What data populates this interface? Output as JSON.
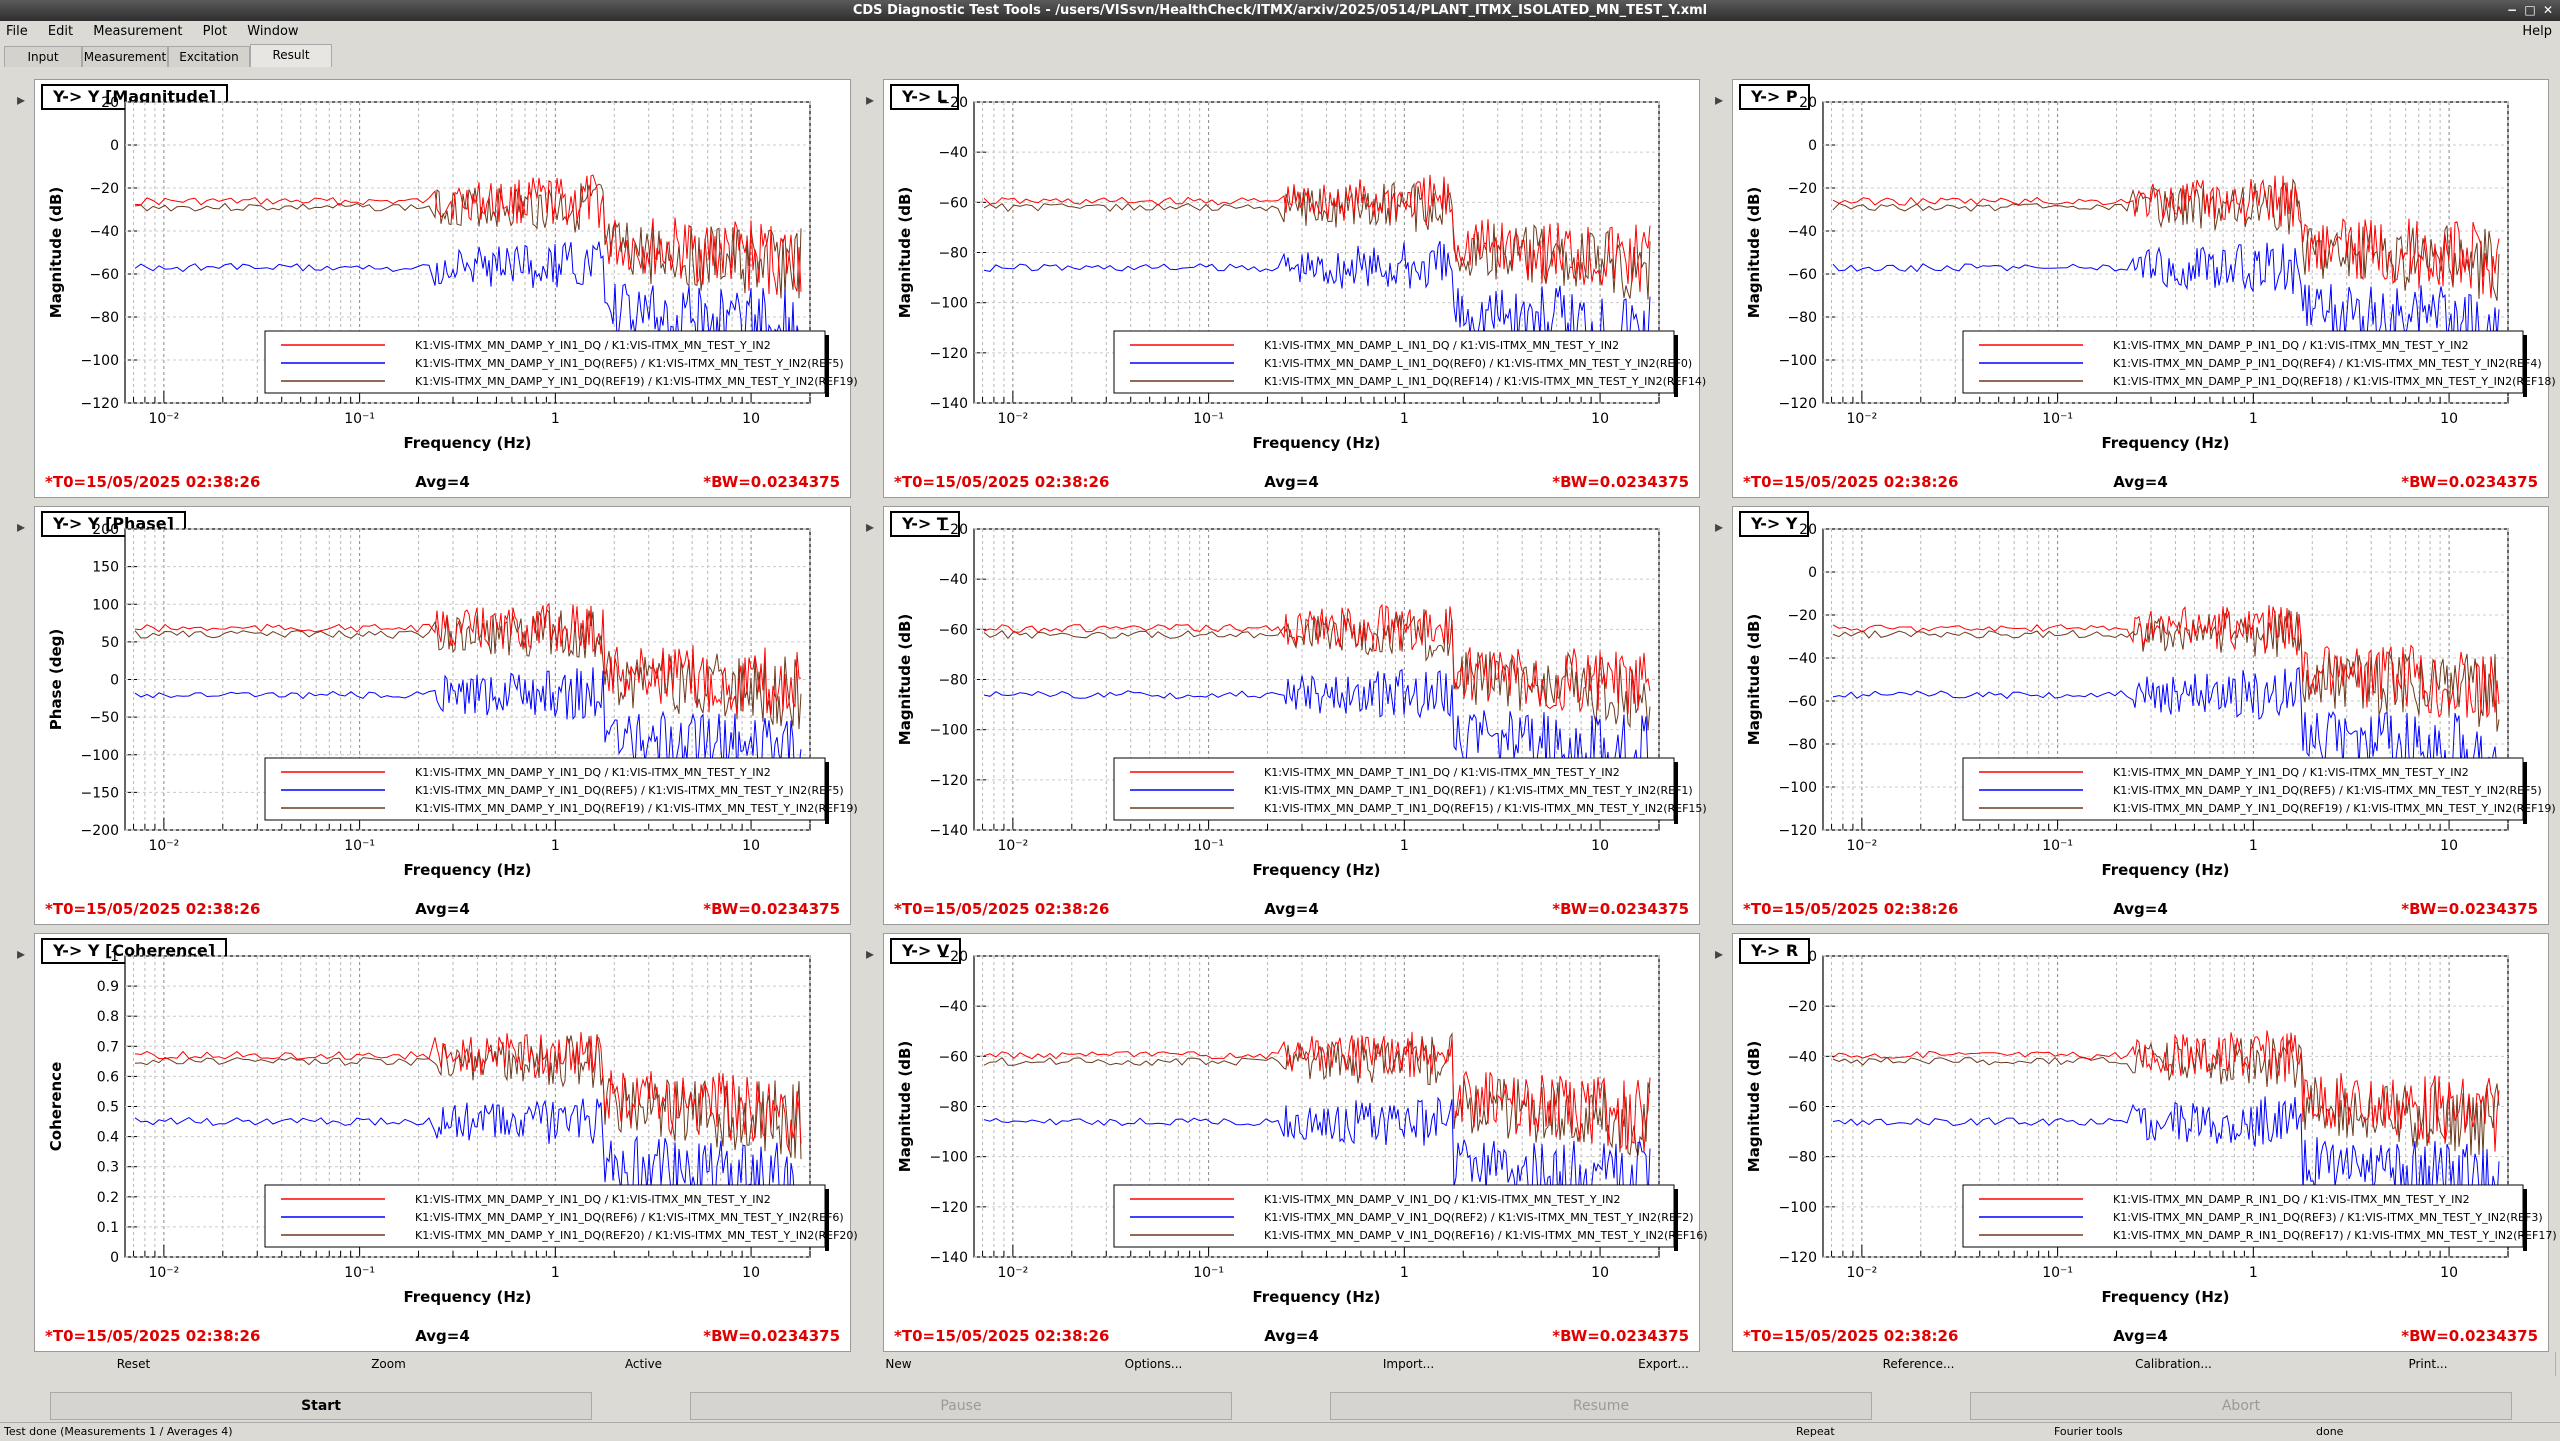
{
  "window": {
    "title": "CDS Diagnostic Test Tools - /users/VISsvn/HealthCheck/ITMX/arxiv/2025/0514/PLANT_ITMX_ISOLATED_MN_TEST_Y.xml"
  },
  "menu": {
    "items": [
      "File",
      "Edit",
      "Measurement",
      "Plot",
      "Window"
    ],
    "help": "Help"
  },
  "tabs": [
    "Input",
    "Measurement",
    "Excitation",
    "Result"
  ],
  "common": {
    "t0": "*T0=15/05/2025 02:38:26",
    "avg": "Avg=4",
    "bw": "*BW=0.0234375",
    "xlabel": "Frequency (Hz)",
    "xticks": [
      "10⁻²",
      "10⁻¹",
      "1",
      "10"
    ]
  },
  "panels": [
    {
      "title": "Y-> Y [Magnitude]",
      "ylabel": "Magnitude (dB)",
      "yticks": [
        "20",
        "0",
        "−20",
        "−40",
        "−60",
        "−80",
        "−100",
        "−120"
      ],
      "legend": [
        "K1:VIS-ITMX_MN_DAMP_Y_IN1_DQ / K1:VIS-ITMX_MN_TEST_Y_IN2",
        "K1:VIS-ITMX_MN_DAMP_Y_IN1_DQ(REF5) / K1:VIS-ITMX_MN_TEST_Y_IN2(REF5)",
        "K1:VIS-ITMX_MN_DAMP_Y_IN1_DQ(REF19) / K1:VIS-ITMX_MN_TEST_Y_IN2(REF19)"
      ]
    },
    {
      "title": "Y-> L",
      "ylabel": "Magnitude (dB)",
      "yticks": [
        "−20",
        "−40",
        "−60",
        "−80",
        "−100",
        "−120",
        "−140"
      ],
      "legend": [
        "K1:VIS-ITMX_MN_DAMP_L_IN1_DQ / K1:VIS-ITMX_MN_TEST_Y_IN2",
        "K1:VIS-ITMX_MN_DAMP_L_IN1_DQ(REF0) / K1:VIS-ITMX_MN_TEST_Y_IN2(REF0)",
        "K1:VIS-ITMX_MN_DAMP_L_IN1_DQ(REF14) / K1:VIS-ITMX_MN_TEST_Y_IN2(REF14)"
      ]
    },
    {
      "title": "Y-> P",
      "ylabel": "Magnitude (dB)",
      "yticks": [
        "20",
        "0",
        "−20",
        "−40",
        "−60",
        "−80",
        "−100",
        "−120"
      ],
      "legend": [
        "K1:VIS-ITMX_MN_DAMP_P_IN1_DQ / K1:VIS-ITMX_MN_TEST_Y_IN2",
        "K1:VIS-ITMX_MN_DAMP_P_IN1_DQ(REF4) / K1:VIS-ITMX_MN_TEST_Y_IN2(REF4)",
        "K1:VIS-ITMX_MN_DAMP_P_IN1_DQ(REF18) / K1:VIS-ITMX_MN_TEST_Y_IN2(REF18)"
      ]
    },
    {
      "title": "Y-> Y [Phase]",
      "ylabel": "Phase (deg)",
      "yticks": [
        "200",
        "150",
        "100",
        "50",
        "0",
        "−50",
        "−100",
        "−150",
        "−200"
      ],
      "legend": [
        "K1:VIS-ITMX_MN_DAMP_Y_IN1_DQ / K1:VIS-ITMX_MN_TEST_Y_IN2",
        "K1:VIS-ITMX_MN_DAMP_Y_IN1_DQ(REF5) / K1:VIS-ITMX_MN_TEST_Y_IN2(REF5)",
        "K1:VIS-ITMX_MN_DAMP_Y_IN1_DQ(REF19) / K1:VIS-ITMX_MN_TEST_Y_IN2(REF19)"
      ]
    },
    {
      "title": "Y-> T",
      "ylabel": "Magnitude (dB)",
      "yticks": [
        "−20",
        "−40",
        "−60",
        "−80",
        "−100",
        "−120",
        "−140"
      ],
      "legend": [
        "K1:VIS-ITMX_MN_DAMP_T_IN1_DQ / K1:VIS-ITMX_MN_TEST_Y_IN2",
        "K1:VIS-ITMX_MN_DAMP_T_IN1_DQ(REF1) / K1:VIS-ITMX_MN_TEST_Y_IN2(REF1)",
        "K1:VIS-ITMX_MN_DAMP_T_IN1_DQ(REF15) / K1:VIS-ITMX_MN_TEST_Y_IN2(REF15)"
      ]
    },
    {
      "title": "Y-> Y",
      "ylabel": "Magnitude (dB)",
      "yticks": [
        "20",
        "0",
        "−20",
        "−40",
        "−60",
        "−80",
        "−100",
        "−120"
      ],
      "legend": [
        "K1:VIS-ITMX_MN_DAMP_Y_IN1_DQ / K1:VIS-ITMX_MN_TEST_Y_IN2",
        "K1:VIS-ITMX_MN_DAMP_Y_IN1_DQ(REF5) / K1:VIS-ITMX_MN_TEST_Y_IN2(REF5)",
        "K1:VIS-ITMX_MN_DAMP_Y_IN1_DQ(REF19) / K1:VIS-ITMX_MN_TEST_Y_IN2(REF19)"
      ]
    },
    {
      "title": "Y-> Y [Coherence]",
      "ylabel": "Coherence",
      "yticks": [
        "1",
        "0.9",
        "0.8",
        "0.7",
        "0.6",
        "0.5",
        "0.4",
        "0.3",
        "0.2",
        "0.1",
        "0"
      ],
      "legend": [
        "K1:VIS-ITMX_MN_DAMP_Y_IN1_DQ / K1:VIS-ITMX_MN_TEST_Y_IN2",
        "K1:VIS-ITMX_MN_DAMP_Y_IN1_DQ(REF6) / K1:VIS-ITMX_MN_TEST_Y_IN2(REF6)",
        "K1:VIS-ITMX_MN_DAMP_Y_IN1_DQ(REF20) / K1:VIS-ITMX_MN_TEST_Y_IN2(REF20)"
      ]
    },
    {
      "title": "Y-> V",
      "ylabel": "Magnitude (dB)",
      "yticks": [
        "−20",
        "−40",
        "−60",
        "−80",
        "−100",
        "−120",
        "−140"
      ],
      "legend": [
        "K1:VIS-ITMX_MN_DAMP_V_IN1_DQ / K1:VIS-ITMX_MN_TEST_Y_IN2",
        "K1:VIS-ITMX_MN_DAMP_V_IN1_DQ(REF2) / K1:VIS-ITMX_MN_TEST_Y_IN2(REF2)",
        "K1:VIS-ITMX_MN_DAMP_V_IN1_DQ(REF16) / K1:VIS-ITMX_MN_TEST_Y_IN2(REF16)"
      ]
    },
    {
      "title": "Y-> R",
      "ylabel": "Magnitude (dB)",
      "yticks": [
        "0",
        "−20",
        "−40",
        "−60",
        "−80",
        "−100",
        "−120"
      ],
      "legend": [
        "K1:VIS-ITMX_MN_DAMP_R_IN1_DQ / K1:VIS-ITMX_MN_TEST_Y_IN2",
        "K1:VIS-ITMX_MN_DAMP_R_IN1_DQ(REF3) / K1:VIS-ITMX_MN_TEST_Y_IN2(REF3)",
        "K1:VIS-ITMX_MN_DAMP_R_IN1_DQ(REF17) / K1:VIS-ITMX_MN_TEST_Y_IN2(REF17)"
      ]
    }
  ],
  "colors": {
    "ch1": "#ff0000",
    "ref_a": "#0000ff",
    "ref_b": "#6b3a1e",
    "info_red": "#e00000"
  },
  "buttons": [
    "Reset",
    "Zoom",
    "Active",
    "New",
    "Options...",
    "Import...",
    "Export...",
    "Reference...",
    "Calibration...",
    "Print..."
  ],
  "controls": [
    "Start",
    "Pause",
    "Resume",
    "Abort"
  ],
  "status": {
    "left": "Test done (Measurements 1 / Averages 4)",
    "mid": "Repeat",
    "fourier": "Fourier tools",
    "right": "done"
  }
}
